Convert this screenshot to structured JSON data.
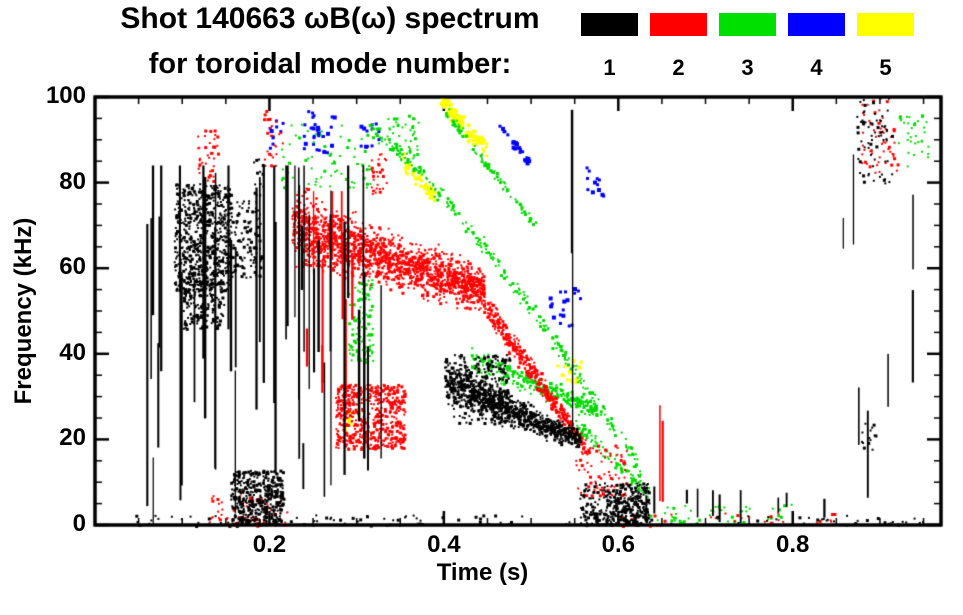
{
  "title": {
    "line1": "Shot 140663 ωB(ω) spectrum",
    "line2": "for toroidal mode number:"
  },
  "legend": {
    "modes": [
      {
        "label": "1",
        "color": "#000000"
      },
      {
        "label": "2",
        "color": "#ff0000"
      },
      {
        "label": "3",
        "color": "#00e000"
      },
      {
        "label": "4",
        "color": "#0000ff"
      },
      {
        "label": "5",
        "color": "#ffff00"
      }
    ]
  },
  "chart_data": {
    "type": "scatter",
    "title": "Shot 140663 ωB(ω) spectrum for toroidal mode number 1-5",
    "xlabel": "Time (s)",
    "ylabel": "Frequency (kHz)",
    "xlim": [
      0,
      0.97
    ],
    "ylim": [
      0,
      100
    ],
    "xticks": [
      0.2,
      0.4,
      0.6,
      0.8
    ],
    "xtick_labels": [
      "0.2",
      "0.4",
      "0.6",
      "0.8"
    ],
    "yticks": [
      0,
      20,
      40,
      60,
      80,
      100
    ],
    "ytick_labels": [
      "0",
      "20",
      "40",
      "60",
      "80",
      "100"
    ],
    "x_minor_step": 0.05,
    "y_minor_step": 5,
    "grid": false,
    "legend_position": "top-right",
    "draw_order": [
      5,
      4,
      3,
      2,
      1
    ],
    "series": [
      {
        "name": "mode 1",
        "mode": 1,
        "color": "#000000",
        "point_size": 2,
        "features": [
          {
            "kind": "streaks",
            "t": [
              0.055,
              0.33
            ],
            "f": [
              0,
              84
            ],
            "n": 45,
            "len": [
              8,
              70
            ]
          },
          {
            "kind": "cluster",
            "t": [
              0.09,
              0.155
            ],
            "f": [
              55,
              80
            ],
            "n": 650
          },
          {
            "kind": "cluster",
            "t": [
              0.1,
              0.148
            ],
            "f": [
              46,
              57
            ],
            "n": 160
          },
          {
            "kind": "cluster",
            "t": [
              0.152,
              0.19
            ],
            "f": [
              58,
              76
            ],
            "n": 130
          },
          {
            "kind": "cluster",
            "t": [
              0.175,
              0.192
            ],
            "f": [
              77,
              86
            ],
            "n": 14
          },
          {
            "kind": "cluster",
            "t": [
              0.155,
              0.215
            ],
            "f": [
              0,
              13
            ],
            "n": 450
          },
          {
            "kind": "sweep",
            "t": [
              0.4,
              0.555
            ],
            "f_start": 34,
            "f_end": 20,
            "w": [
              7,
              3
            ],
            "n": 850
          },
          {
            "kind": "cluster",
            "t": [
              0.41,
              0.475
            ],
            "f": [
              24,
              40
            ],
            "n": 250
          },
          {
            "kind": "cluster",
            "t": [
              0.555,
              0.635
            ],
            "f": [
              0,
              10
            ],
            "n": 260
          },
          {
            "kind": "cluster",
            "t": [
              0.585,
              0.625
            ],
            "f": [
              0,
              7
            ],
            "n": 110
          },
          {
            "kind": "cluster",
            "t": [
              0.03,
              0.95
            ],
            "f": [
              0,
              2.5
            ],
            "n": 130
          },
          {
            "kind": "streaks",
            "t": [
              0.63,
              0.85
            ],
            "f": [
              0,
              9
            ],
            "n": 10,
            "len": [
              3,
              8
            ]
          },
          {
            "kind": "streaks",
            "t": [
              0.543,
              0.556
            ],
            "f": [
              0,
              97
            ],
            "n": 2,
            "len": [
              50,
              90
            ]
          },
          {
            "kind": "streaks",
            "t": [
              0.855,
              0.94
            ],
            "f": [
              0,
              100
            ],
            "n": 7,
            "len": [
              6,
              30
            ]
          },
          {
            "kind": "cluster",
            "t": [
              0.872,
              0.915
            ],
            "f": [
              80,
              100
            ],
            "n": 70
          },
          {
            "kind": "cluster",
            "t": [
              0.875,
              0.9
            ],
            "f": [
              17,
              24
            ],
            "n": 14
          }
        ]
      },
      {
        "name": "mode 2",
        "mode": 2,
        "color": "#ff0000",
        "point_size": 2,
        "features": [
          {
            "kind": "sweep",
            "t": [
              0.225,
              0.445
            ],
            "f_start": 70,
            "f_end": 55,
            "w": [
              11,
              7
            ],
            "n": 1600
          },
          {
            "kind": "sweep",
            "t": [
              0.445,
              0.565
            ],
            "f_start": 52,
            "f_end": 17,
            "w": [
              5,
              2.5
            ],
            "n": 450
          },
          {
            "kind": "cluster",
            "t": [
              0.275,
              0.355
            ],
            "f": [
              18,
              33
            ],
            "n": 550
          },
          {
            "kind": "streaks",
            "t": [
              0.228,
              0.295
            ],
            "f": [
              30,
              78
            ],
            "n": 9,
            "len": [
              8,
              30
            ]
          },
          {
            "kind": "cluster",
            "t": [
              0.115,
              0.14
            ],
            "f": [
              80,
              93
            ],
            "n": 40
          },
          {
            "kind": "cluster",
            "t": [
              0.19,
              0.215
            ],
            "f": [
              84,
              97
            ],
            "n": 25
          },
          {
            "kind": "cluster",
            "t": [
              0.315,
              0.335
            ],
            "f": [
              77,
              87
            ],
            "n": 30
          },
          {
            "kind": "cluster",
            "t": [
              0.13,
              0.22
            ],
            "f": [
              0,
              7
            ],
            "n": 70
          },
          {
            "kind": "cluster",
            "t": [
              0.55,
              0.61
            ],
            "f": [
              7,
              19
            ],
            "n": 80
          },
          {
            "kind": "cluster",
            "t": [
              0.878,
              0.92
            ],
            "f": [
              82,
              100
            ],
            "n": 55
          },
          {
            "kind": "streaks",
            "t": [
              0.64,
              0.66
            ],
            "f": [
              0,
              28
            ],
            "n": 2,
            "len": [
              12,
              26
            ]
          },
          {
            "kind": "cluster",
            "t": [
              0.6,
              0.86
            ],
            "f": [
              0,
              3
            ],
            "n": 30
          }
        ]
      },
      {
        "name": "mode 3",
        "mode": 3,
        "color": "#00d800",
        "point_size": 2,
        "features": [
          {
            "kind": "sweep",
            "t": [
              0.31,
              0.625
            ],
            "f_start": 93,
            "f_end": 13,
            "w": [
              2.5,
              3
            ],
            "n": 280,
            "p": 1.25
          },
          {
            "kind": "sweep",
            "t": [
              0.4,
              0.505
            ],
            "f_start": 97,
            "f_end": 70,
            "w": [
              2.5,
              2.5
            ],
            "n": 90
          },
          {
            "kind": "sweep",
            "t": [
              0.43,
              0.575
            ],
            "f_start": 39,
            "f_end": 27,
            "w": [
              4,
              3
            ],
            "n": 300
          },
          {
            "kind": "cluster",
            "t": [
              0.29,
              0.318
            ],
            "f": [
              38,
              58
            ],
            "n": 110
          },
          {
            "kind": "cluster",
            "t": [
              0.21,
              0.315
            ],
            "f": [
              79,
              94
            ],
            "n": 70
          },
          {
            "kind": "cluster",
            "t": [
              0.335,
              0.37
            ],
            "f": [
              86,
              96
            ],
            "n": 40
          },
          {
            "kind": "sweep",
            "t": [
              0.55,
              0.635
            ],
            "f_start": 24,
            "f_end": 7,
            "w": [
              3,
              2
            ],
            "n": 90
          },
          {
            "kind": "cluster",
            "t": [
              0.63,
              0.8
            ],
            "f": [
              0,
              5
            ],
            "n": 55
          },
          {
            "kind": "cluster",
            "t": [
              0.92,
              0.955
            ],
            "f": [
              83,
              96
            ],
            "n": 35
          }
        ]
      },
      {
        "name": "mode 4",
        "mode": 4,
        "color": "#0000ff",
        "point_size": 3,
        "features": [
          {
            "kind": "cluster",
            "t": [
              0.238,
              0.275
            ],
            "f": [
              87,
              97
            ],
            "n": 30
          },
          {
            "kind": "sweep",
            "t": [
              0.46,
              0.5
            ],
            "f_start": 94,
            "f_end": 84,
            "w": [
              1.5,
              1.5
            ],
            "n": 30
          },
          {
            "kind": "cluster",
            "t": [
              0.52,
              0.555
            ],
            "f": [
              46,
              56
            ],
            "n": 18
          },
          {
            "kind": "cluster",
            "t": [
              0.558,
              0.582
            ],
            "f": [
              77,
              84
            ],
            "n": 12
          },
          {
            "kind": "cluster",
            "t": [
              0.198,
              0.215
            ],
            "f": [
              88,
              95
            ],
            "n": 10
          },
          {
            "kind": "cluster",
            "t": [
              0.3,
              0.325
            ],
            "f": [
              88,
              95
            ],
            "n": 12
          }
        ]
      },
      {
        "name": "mode 5",
        "mode": 5,
        "color": "#ffff00",
        "point_size": 3,
        "features": [
          {
            "kind": "sweep",
            "t": [
              0.395,
              0.448
            ],
            "f_start": 99,
            "f_end": 88,
            "w": [
              3,
              3
            ],
            "n": 110
          },
          {
            "kind": "sweep",
            "t": [
              0.352,
              0.388
            ],
            "f_start": 85,
            "f_end": 77,
            "w": [
              2.5,
              2.5
            ],
            "n": 50
          },
          {
            "kind": "cluster",
            "t": [
              0.528,
              0.558
            ],
            "f": [
              33,
              39
            ],
            "n": 16
          },
          {
            "kind": "cluster",
            "t": [
              0.285,
              0.302
            ],
            "f": [
              22,
              27
            ],
            "n": 10
          }
        ]
      }
    ]
  }
}
